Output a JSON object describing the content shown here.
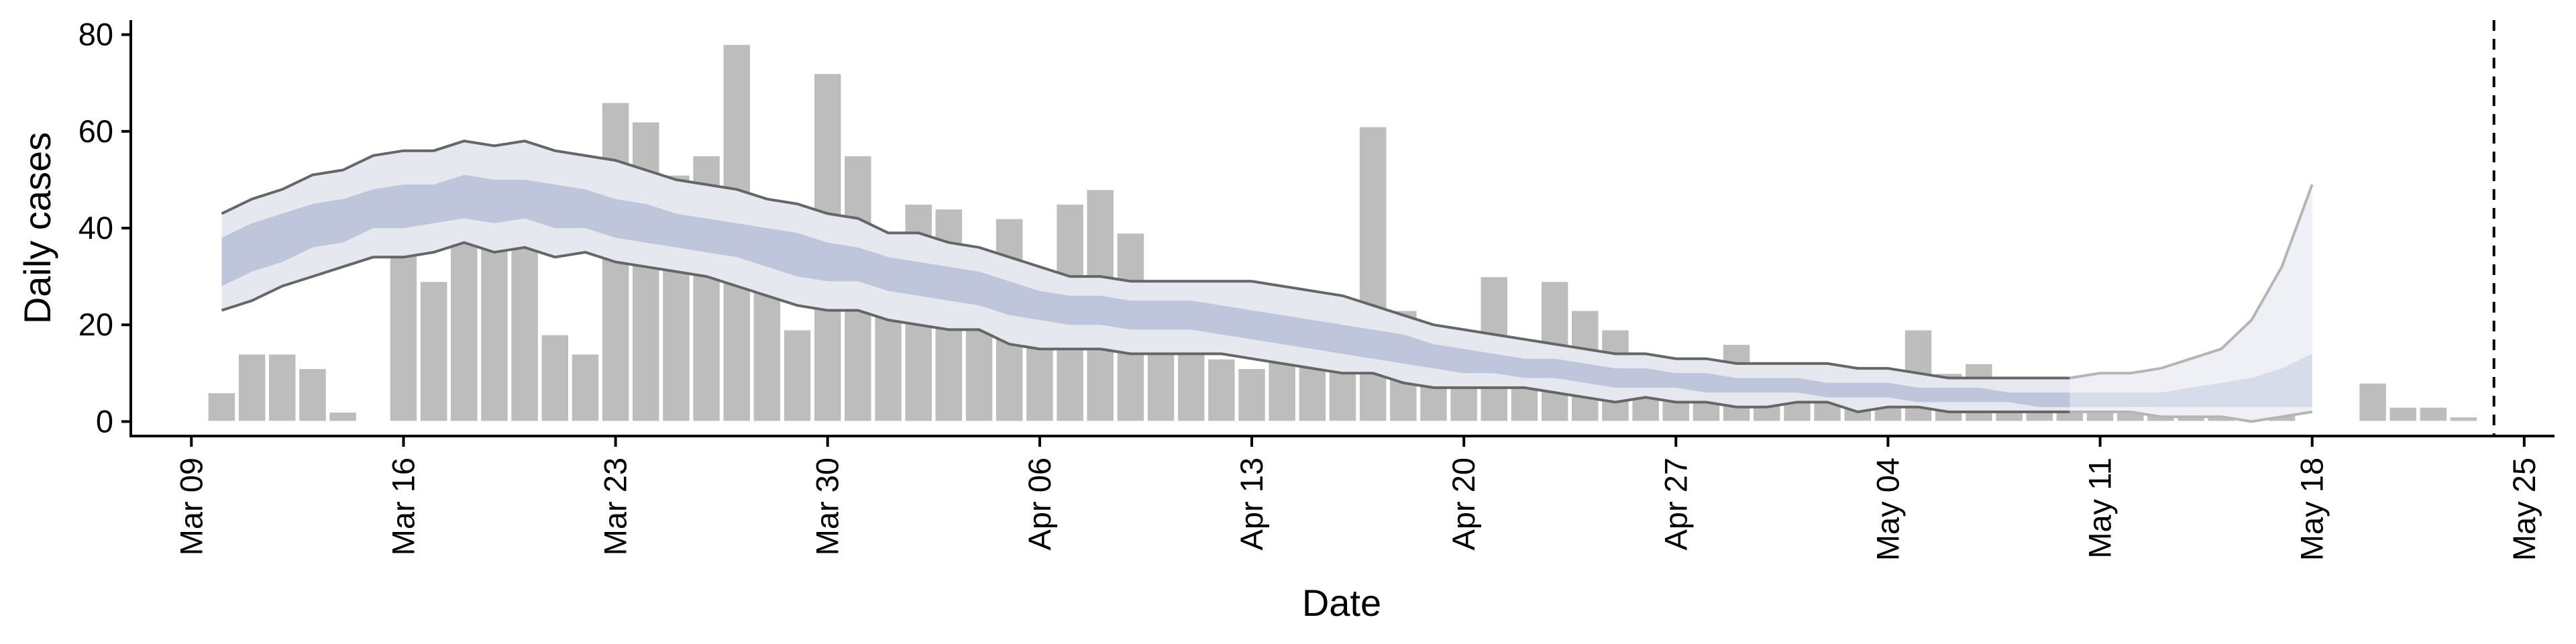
{
  "chart_data": {
    "type": "bar",
    "xlabel": "Date",
    "ylabel": "Daily cases",
    "ylim": [
      -3,
      83
    ],
    "xlim": [
      "2020-03-07",
      "2020-05-26"
    ],
    "x_ticks": [
      {
        "date": "2020-03-09",
        "label": "Mar 09"
      },
      {
        "date": "2020-03-16",
        "label": "Mar 16"
      },
      {
        "date": "2020-03-23",
        "label": "Mar 23"
      },
      {
        "date": "2020-03-30",
        "label": "Mar 30"
      },
      {
        "date": "2020-04-06",
        "label": "Apr 06"
      },
      {
        "date": "2020-04-13",
        "label": "Apr 13"
      },
      {
        "date": "2020-04-20",
        "label": "Apr 20"
      },
      {
        "date": "2020-04-27",
        "label": "Apr 27"
      },
      {
        "date": "2020-05-04",
        "label": "May 04"
      },
      {
        "date": "2020-05-11",
        "label": "May 11"
      },
      {
        "date": "2020-05-18",
        "label": "May 18"
      },
      {
        "date": "2020-05-25",
        "label": "May 25"
      }
    ],
    "y_ticks": [
      0,
      20,
      40,
      60,
      80
    ],
    "grid": false,
    "vertical_line_date": "2020-05-24",
    "bars_start_date": "2020-03-10",
    "daily_cases": [
      6,
      14,
      14,
      11,
      2,
      0,
      35,
      29,
      38,
      43,
      51,
      18,
      14,
      66,
      62,
      51,
      55,
      78,
      42,
      19,
      72,
      55,
      36,
      45,
      44,
      34,
      42,
      26,
      45,
      48,
      39,
      25,
      29,
      13,
      11,
      25,
      22,
      25,
      61,
      23,
      15,
      13,
      30,
      16,
      29,
      23,
      19,
      5,
      6,
      13,
      16,
      12,
      10,
      5,
      4,
      5,
      19,
      10,
      12,
      8,
      4,
      2,
      2,
      7,
      9,
      10,
      1,
      3,
      2,
      0,
      0,
      8,
      3,
      3,
      1
    ],
    "estimate_start_date": "2020-03-10",
    "outer_upper": [
      43,
      46,
      48,
      51,
      52,
      55,
      56,
      56,
      58,
      57,
      58,
      56,
      55,
      54,
      52,
      50,
      49,
      48,
      46,
      45,
      43,
      42,
      39,
      39,
      37,
      36,
      34,
      32,
      30,
      30,
      29,
      29,
      29,
      29,
      29,
      28,
      27,
      26,
      24,
      22,
      20,
      19,
      18,
      17,
      16,
      15,
      14,
      14,
      13,
      13,
      12,
      12,
      12,
      12,
      11,
      11,
      10,
      9,
      9,
      9,
      9,
      9,
      10,
      10,
      11,
      13,
      15,
      21,
      32,
      49
    ],
    "outer_lower": [
      23,
      25,
      28,
      30,
      32,
      34,
      34,
      35,
      37,
      35,
      36,
      34,
      35,
      33,
      32,
      31,
      30,
      28,
      26,
      24,
      23,
      23,
      21,
      20,
      19,
      19,
      16,
      15,
      15,
      15,
      14,
      14,
      14,
      14,
      13,
      12,
      11,
      10,
      10,
      8,
      7,
      7,
      7,
      7,
      6,
      5,
      4,
      5,
      4,
      4,
      3,
      3,
      4,
      4,
      2,
      3,
      3,
      2,
      2,
      2,
      2,
      2,
      2,
      2,
      1,
      1,
      1,
      0,
      1,
      2
    ],
    "inner_upper": [
      38,
      41,
      43,
      45,
      46,
      48,
      49,
      49,
      51,
      50,
      50,
      49,
      48,
      46,
      45,
      43,
      42,
      41,
      40,
      39,
      37,
      36,
      34,
      33,
      32,
      31,
      29,
      27,
      26,
      26,
      25,
      25,
      25,
      24,
      23,
      22,
      21,
      20,
      19,
      18,
      16,
      15,
      14,
      13,
      13,
      12,
      11,
      11,
      10,
      10,
      9,
      9,
      9,
      8,
      8,
      8,
      7,
      7,
      7,
      6,
      6,
      6,
      6,
      6,
      6,
      7,
      8,
      9,
      11,
      14
    ],
    "inner_lower": [
      28,
      31,
      33,
      36,
      37,
      40,
      40,
      41,
      42,
      41,
      42,
      40,
      40,
      38,
      37,
      36,
      35,
      34,
      32,
      30,
      29,
      29,
      27,
      26,
      25,
      24,
      22,
      21,
      20,
      20,
      19,
      19,
      19,
      18,
      17,
      16,
      15,
      14,
      13,
      12,
      11,
      10,
      10,
      9,
      9,
      8,
      7,
      7,
      7,
      6,
      6,
      6,
      6,
      5,
      5,
      5,
      4,
      4,
      4,
      4,
      3,
      3,
      3,
      3,
      3,
      3,
      3,
      3,
      3,
      3
    ],
    "projection_start_index": 61
  }
}
